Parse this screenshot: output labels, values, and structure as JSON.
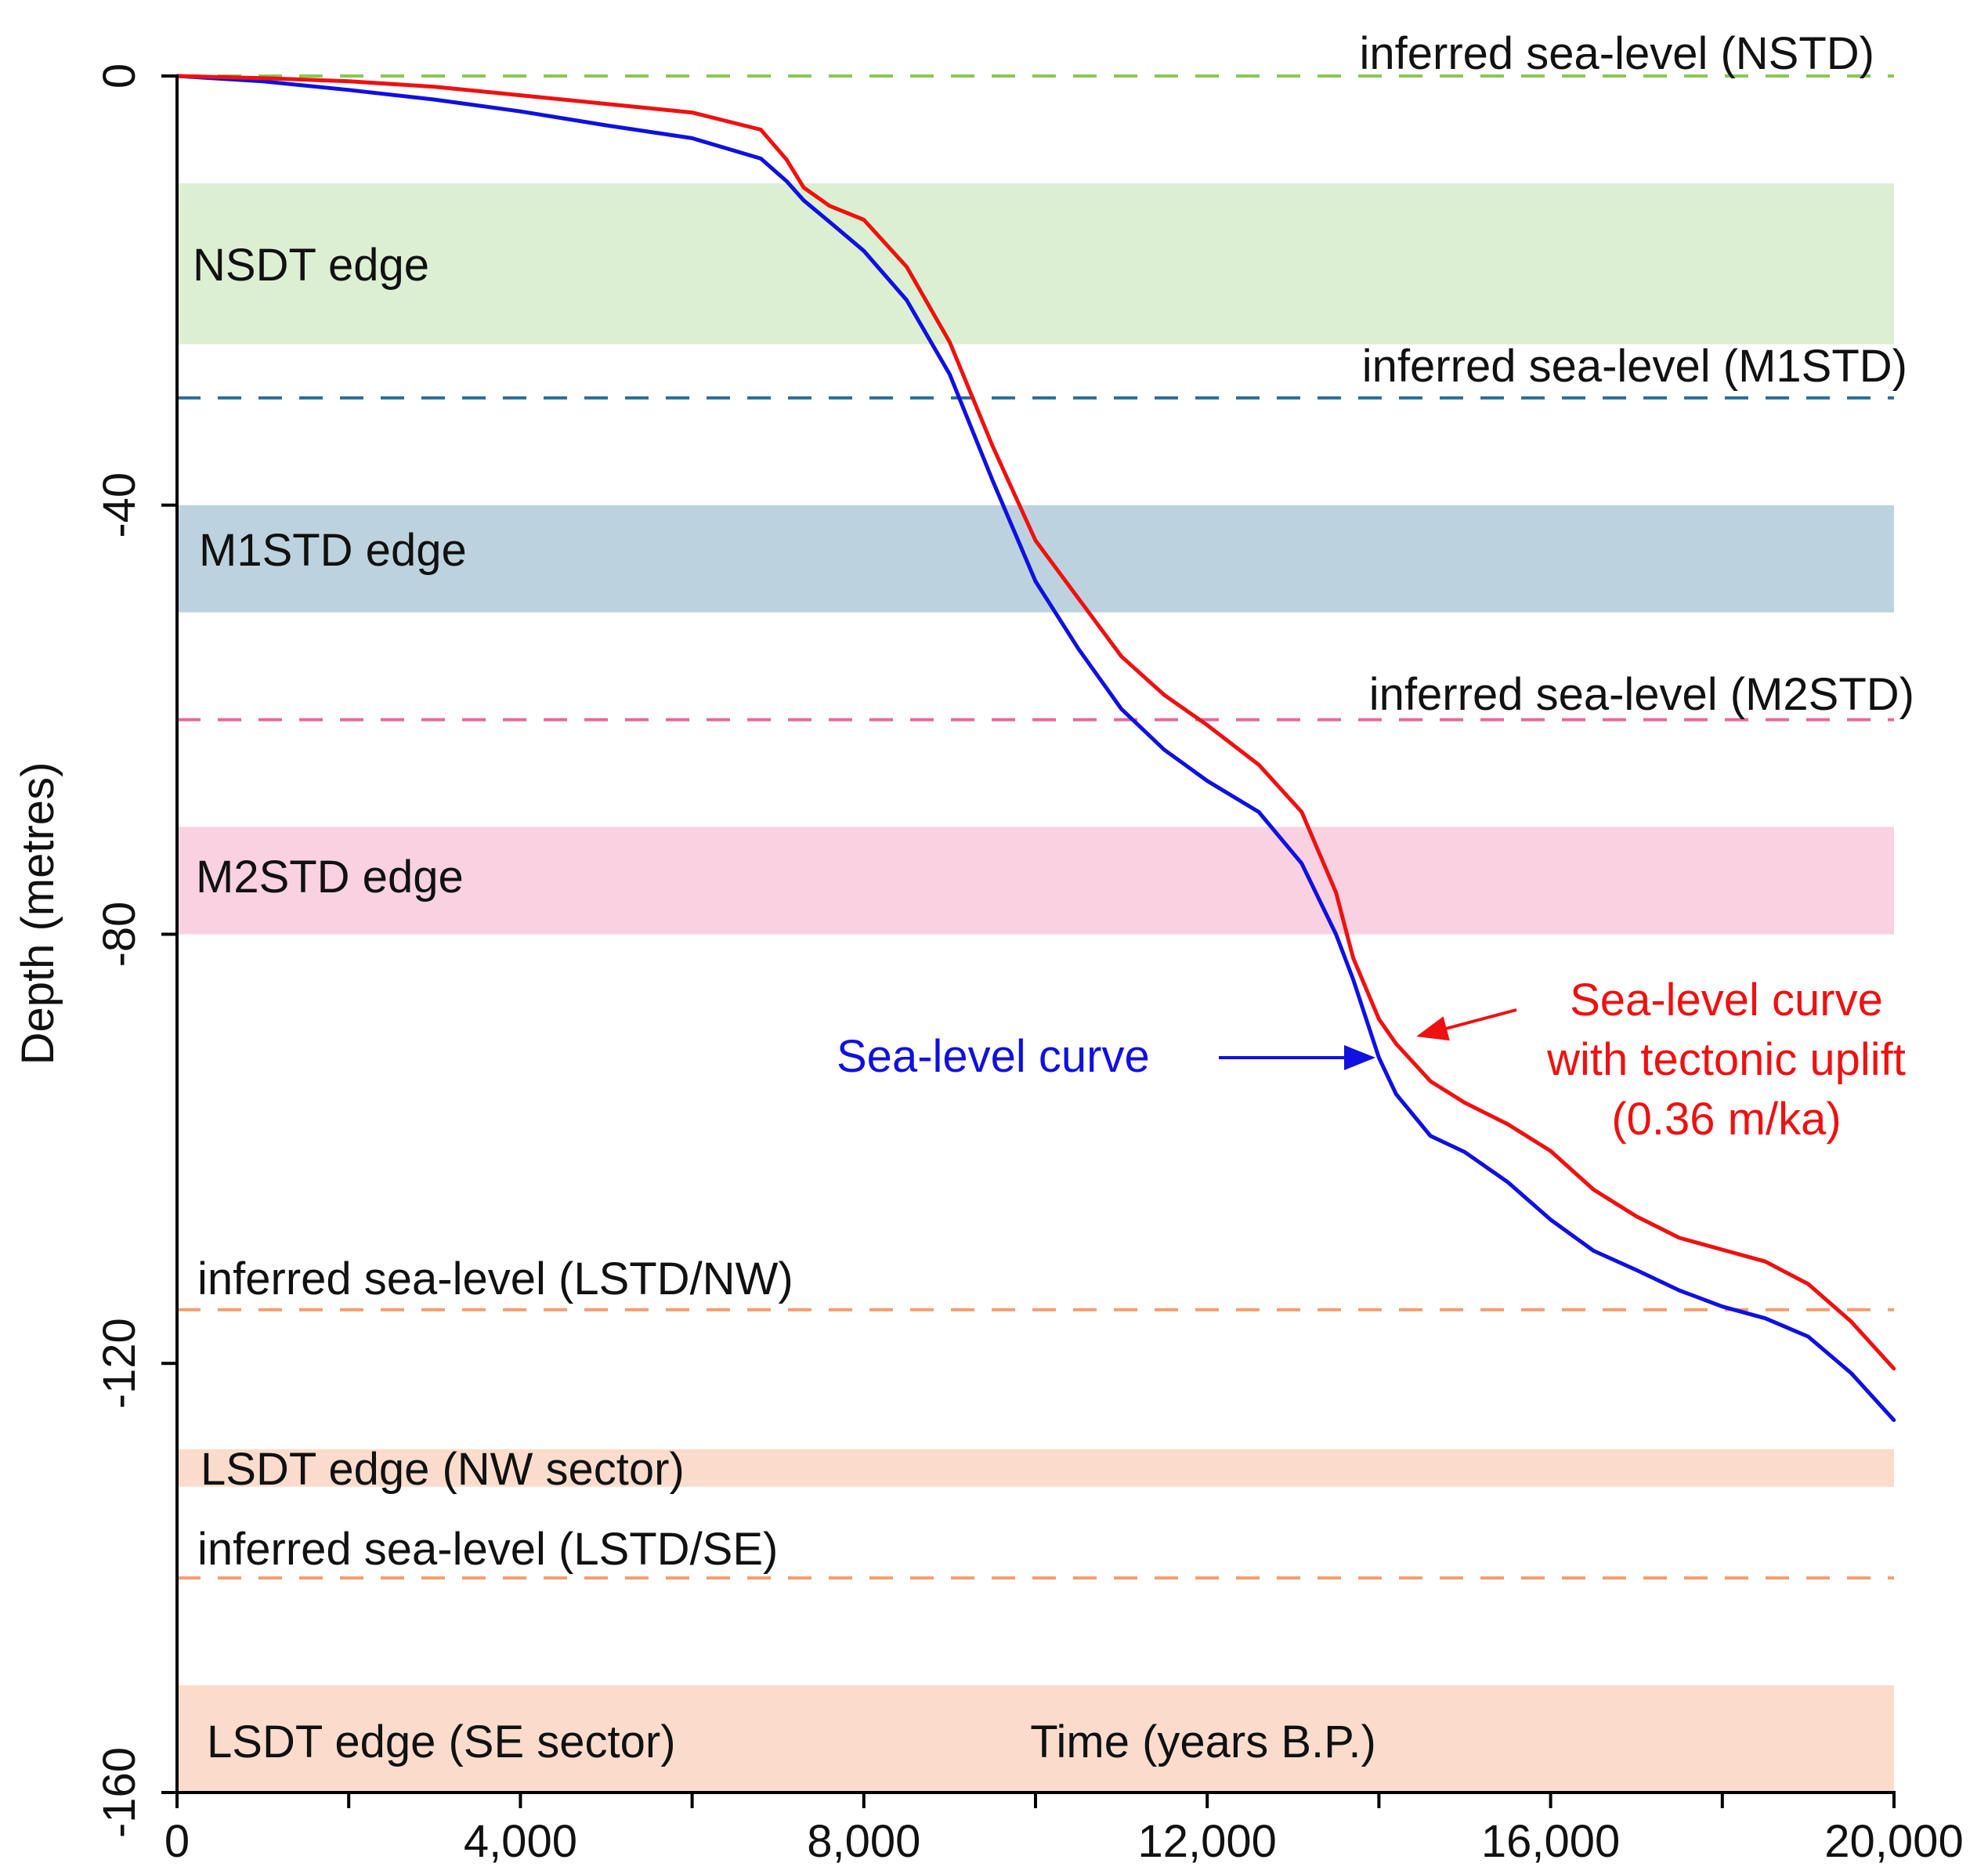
{
  "chart_data": {
    "type": "line",
    "title": "",
    "xlabel": "Time (years B.P.)",
    "ylabel": "Depth (metres)",
    "xlim": [
      0,
      20000
    ],
    "ylim": [
      -160,
      0
    ],
    "grid": false,
    "x_ticks": [
      0,
      4000,
      8000,
      12000,
      16000,
      20000
    ],
    "x_tick_labels": [
      "0",
      "4,000",
      "8,000",
      "12,000",
      "16,000",
      "20,000"
    ],
    "x_minor_ticks": [
      2000,
      6000,
      10000,
      14000,
      18000
    ],
    "y_ticks": [
      0,
      -40,
      -80,
      -120,
      -160
    ],
    "y_tick_labels": [
      "0",
      "-40",
      "-80",
      "-120",
      "-160"
    ],
    "bands": [
      {
        "label": "NSDT edge",
        "from": -10,
        "to": -25,
        "color": "#dcefd3"
      },
      {
        "label": "M1STD edge",
        "from": -40,
        "to": -50,
        "color": "#bdd2df"
      },
      {
        "label": "M2STD edge",
        "from": -70,
        "to": -80,
        "color": "#f9d1e0"
      },
      {
        "label": "LSDT edge (NW sector)",
        "from": -128,
        "to": -131.5,
        "color": "#fbdccc"
      },
      {
        "label": "LSDT edge (SE sector)",
        "from": -150,
        "to": -160,
        "color": "#fbdccc"
      }
    ],
    "reference_lines": [
      {
        "label": "inferred sea-level (NSTD)",
        "y": 0,
        "color": "#8bc653"
      },
      {
        "label": "inferred sea-level (M1STD)",
        "y": -30,
        "color": "#2a6f97"
      },
      {
        "label": "inferred sea-level (M2STD)",
        "y": -60,
        "color": "#e06b9b"
      },
      {
        "label": "inferred sea-level (LSTD/NW)",
        "y": -115,
        "color": "#f59d6d"
      },
      {
        "label": "inferred sea-level (LSTD/SE)",
        "y": -140,
        "color": "#f59d6d"
      }
    ],
    "series": [
      {
        "name": "Sea-level curve",
        "color": "#1010e0",
        "x": [
          0,
          1000,
          2000,
          3000,
          4000,
          5000,
          6000,
          6800,
          7100,
          7300,
          7600,
          8000,
          8500,
          9000,
          9500,
          10000,
          10500,
          11000,
          11500,
          12000,
          12600,
          13100,
          13500,
          13700,
          14000,
          14200,
          14600,
          15000,
          15500,
          16000,
          16500,
          17000,
          17500,
          18000,
          18500,
          19000,
          19500,
          20000
        ],
        "y": [
          0,
          -0.5,
          -1.3,
          -2.2,
          -3.3,
          -4.6,
          -5.8,
          -7.7,
          -9.8,
          -11.6,
          -13.6,
          -16.3,
          -20.9,
          -27.8,
          -37.7,
          -47.1,
          -53.4,
          -59.0,
          -62.8,
          -65.7,
          -68.6,
          -73.4,
          -80.0,
          -84.2,
          -91.5,
          -94.9,
          -98.8,
          -100.3,
          -103.1,
          -106.6,
          -109.5,
          -111.3,
          -113.2,
          -114.7,
          -115.8,
          -117.5,
          -120.9,
          -125.3
        ]
      },
      {
        "name": "Sea-level curve with tectonic uplift (0.36 m/ka)",
        "color": "#ee1111",
        "x": [
          0,
          1000,
          2000,
          3000,
          4000,
          5000,
          6000,
          6800,
          7100,
          7300,
          7600,
          8000,
          8500,
          9000,
          9500,
          10000,
          10500,
          11000,
          11500,
          12000,
          12600,
          13100,
          13500,
          13700,
          14000,
          14200,
          14600,
          15000,
          15500,
          16000,
          16500,
          17000,
          17500,
          18000,
          18500,
          19000,
          19500,
          20000
        ],
        "y": [
          0,
          -0.2,
          -0.5,
          -1.0,
          -1.8,
          -2.6,
          -3.4,
          -5.0,
          -7.8,
          -10.4,
          -12.1,
          -13.4,
          -17.8,
          -24.8,
          -34.5,
          -43.3,
          -48.7,
          -54.1,
          -57.7,
          -60.5,
          -64.2,
          -68.6,
          -76.1,
          -82.2,
          -87.9,
          -90.2,
          -93.7,
          -95.7,
          -97.7,
          -100.2,
          -103.8,
          -106.3,
          -108.3,
          -109.4,
          -110.5,
          -112.6,
          -116.1,
          -120.5
        ]
      }
    ],
    "annotations": [
      {
        "lines": [
          "Sea-level curve"
        ],
        "color": "#1010e0"
      },
      {
        "lines": [
          "Sea-level curve",
          "with tectonic uplift",
          "(0.36 m/ka)"
        ],
        "color": "#ee1111"
      }
    ]
  }
}
